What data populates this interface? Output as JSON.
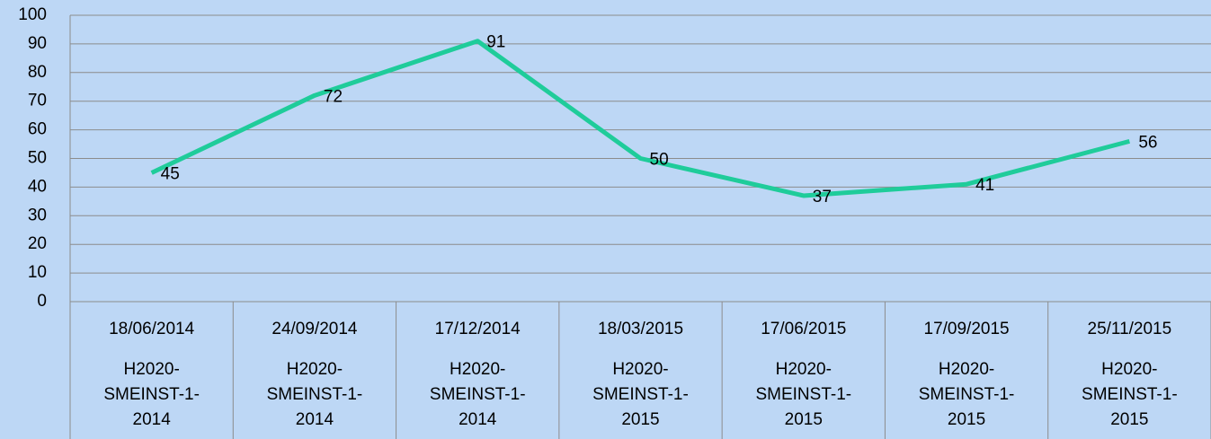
{
  "chart_data": {
    "type": "line",
    "categories": [
      "18/06/2014",
      "24/09/2014",
      "17/12/2014",
      "18/03/2015",
      "17/06/2015",
      "17/09/2015",
      "25/11/2015"
    ],
    "category_groups": [
      "H2020-\nSMEINST-1-\n2014",
      "H2020-\nSMEINST-1-\n2014",
      "H2020-\nSMEINST-1-\n2014",
      "H2020-\nSMEINST-1-\n2015",
      "H2020-\nSMEINST-1-\n2015",
      "H2020-\nSMEINST-1-\n2015",
      "H2020-\nSMEINST-1-\n2015"
    ],
    "values": [
      45,
      72,
      91,
      50,
      37,
      41,
      56
    ],
    "color": "#1fcc9a",
    "ylim": [
      0,
      100
    ],
    "yticks": [
      0,
      10,
      20,
      30,
      40,
      50,
      60,
      70,
      80,
      90,
      100
    ],
    "grid": true
  }
}
